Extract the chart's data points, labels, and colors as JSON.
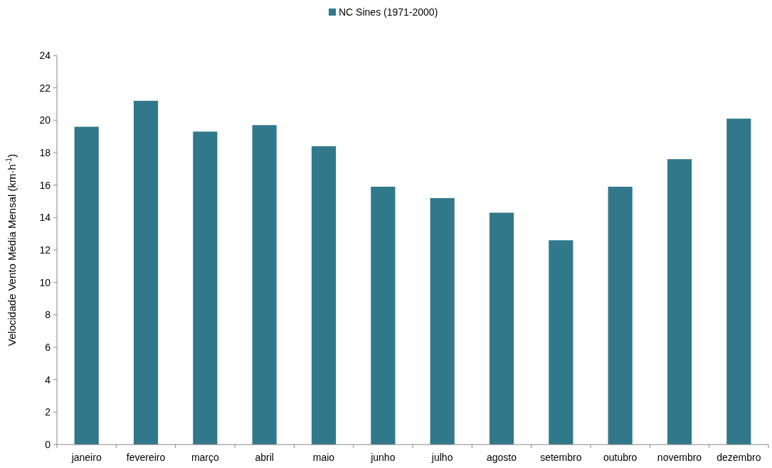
{
  "chart_data": {
    "type": "bar",
    "ylabel": "Velocidade Vento Média Mensal (km·h$^{-1}$)",
    "categories": [
      "janeiro",
      "fevereiro",
      "março",
      "abril",
      "maio",
      "junho",
      "julho",
      "agosto",
      "setembro",
      "outubro",
      "novembro",
      "dezembro"
    ],
    "series": [
      {
        "name": "NC Sines (1971-2000)",
        "color": "#31788a",
        "values": [
          19.6,
          21.2,
          19.3,
          19.7,
          18.4,
          15.9,
          15.2,
          14.3,
          12.6,
          15.9,
          17.6,
          20.1
        ]
      }
    ],
    "ylim": [
      0,
      24
    ],
    "yticks": [
      0,
      2,
      4,
      6,
      8,
      10,
      12,
      14,
      16,
      18,
      20,
      22,
      24
    ],
    "grid": false,
    "legend": "top"
  }
}
